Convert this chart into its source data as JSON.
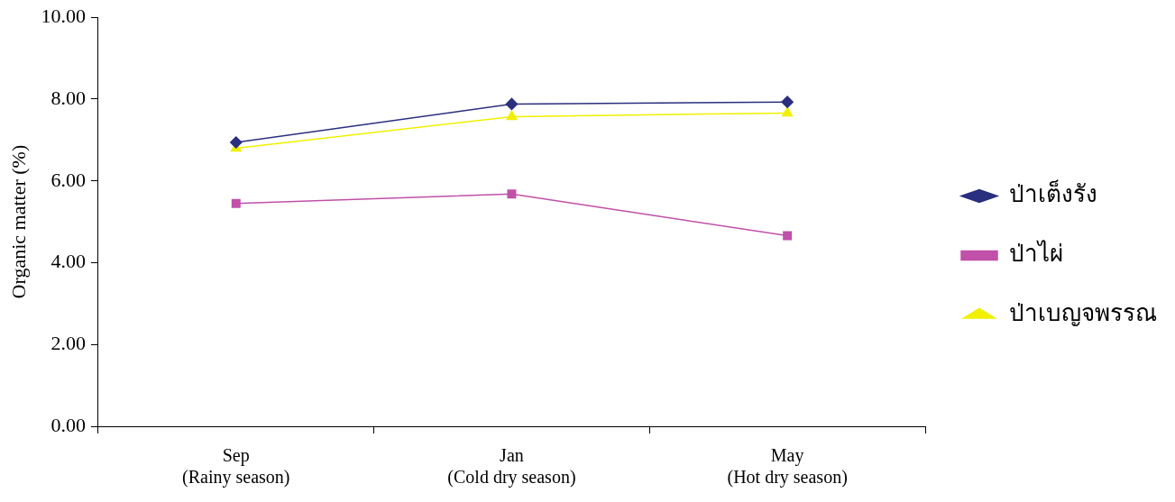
{
  "chart_data": {
    "type": "line",
    "ylabel": "Organic matter (%)",
    "categories": [
      "Sep\n(Rainy season)",
      "Jan\n(Cold dry season)",
      "May\n(Hot dry season)"
    ],
    "series": [
      {
        "name": "ป่าเต็งรัง",
        "color": "#2b2f7f",
        "marker": "diamond",
        "values": [
          6.94,
          7.88,
          7.93
        ]
      },
      {
        "name": "ป่าไผ่",
        "color": "#c050a8",
        "marker": "square",
        "values": [
          5.45,
          5.68,
          4.66
        ]
      },
      {
        "name": "ป่าเบญจพรรณ",
        "color": "#f0f000",
        "marker": "triangle",
        "values": [
          6.8,
          7.57,
          7.66
        ]
      }
    ],
    "ylim": [
      0,
      10
    ],
    "yticks": [
      {
        "value": 0,
        "label": "0.00"
      },
      {
        "value": 2,
        "label": "2.00"
      },
      {
        "value": 4,
        "label": "4.00"
      },
      {
        "value": 6,
        "label": "6.00"
      },
      {
        "value": 8,
        "label": "8.00"
      },
      {
        "value": 10,
        "label": "10.00"
      }
    ],
    "grid": false,
    "legend": "right",
    "line_style": "solid"
  }
}
